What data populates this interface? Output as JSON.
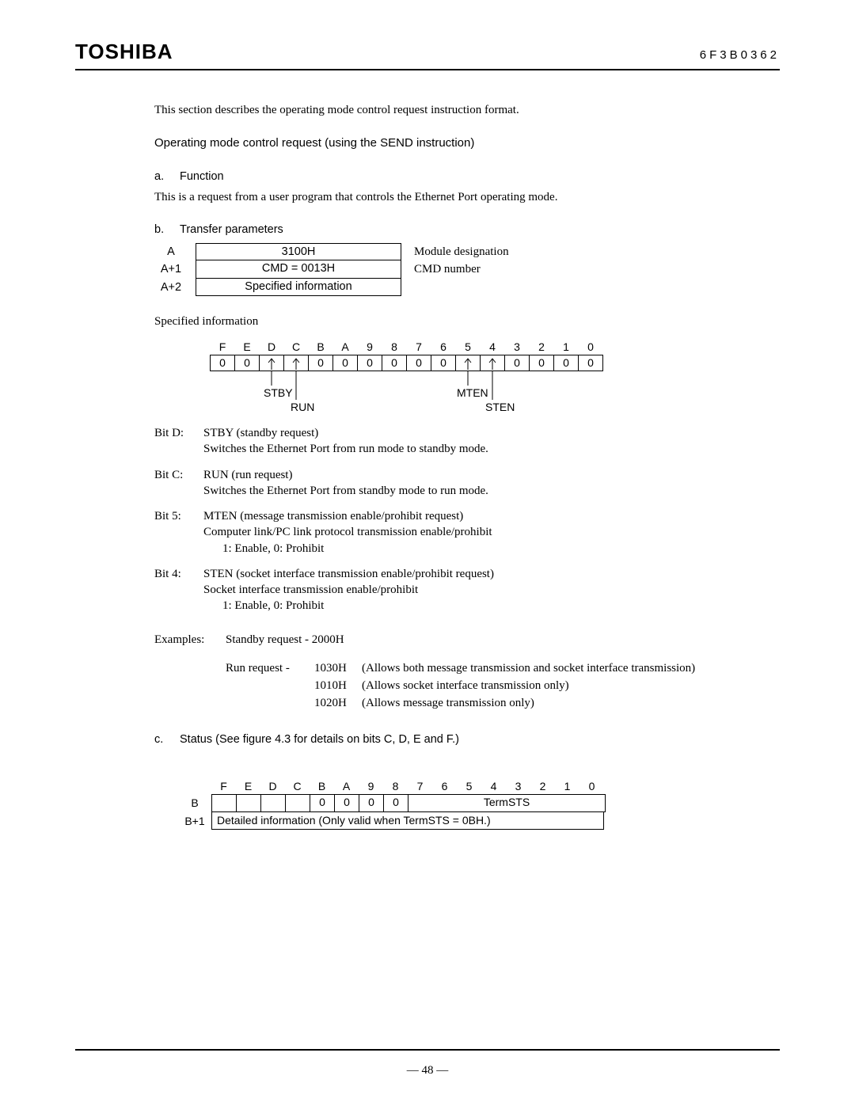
{
  "header": {
    "logo": "TOSHIBA",
    "doc_id": "6F3B0362"
  },
  "intro": "This section describes the operating mode control request instruction format.",
  "section_title": "Operating mode control request (using the SEND instruction)",
  "a": {
    "letter": "a.",
    "heading": "Function",
    "body": "This is a request from a user program that controls the Ethernet Port operating mode."
  },
  "b": {
    "letter": "b.",
    "heading": "Transfer parameters",
    "rows": [
      {
        "addr": "A",
        "value": "3100H",
        "desc": "Module designation"
      },
      {
        "addr": "A+1",
        "value": "CMD = 0013H",
        "desc": "CMD number"
      },
      {
        "addr": "A+2",
        "value": "Specified information",
        "desc": ""
      }
    ]
  },
  "spec_info_label": "Specified information",
  "bit_header": [
    "F",
    "E",
    "D",
    "C",
    "B",
    "A",
    "9",
    "8",
    "7",
    "6",
    "5",
    "4",
    "3",
    "2",
    "1",
    "0"
  ],
  "bit_values": [
    "0",
    "0",
    "↑",
    "↑",
    "0",
    "0",
    "0",
    "0",
    "0",
    "0",
    "↑",
    "↑",
    "0",
    "0",
    "0",
    "0"
  ],
  "bit_arrow_indices": [
    2,
    3,
    10,
    11
  ],
  "bit_labels": {
    "stby": "STBY",
    "run": "RUN",
    "mten": "MTEN",
    "sten": "STEN"
  },
  "bit_descriptions": [
    {
      "label": "Bit D:",
      "title": "STBY (standby request)",
      "lines": [
        "Switches the Ethernet Port from run mode to standby mode."
      ]
    },
    {
      "label": "Bit C:",
      "title": "RUN (run request)",
      "lines": [
        "Switches the Ethernet Port from standby mode to run mode."
      ]
    },
    {
      "label": "Bit 5:",
      "title": "MTEN (message transmission enable/prohibit request)",
      "lines": [
        "Computer link/PC link protocol transmission enable/prohibit"
      ],
      "indent": "1: Enable, 0: Prohibit"
    },
    {
      "label": "Bit 4:",
      "title": "STEN (socket interface transmission enable/prohibit request)",
      "lines": [
        "Socket interface transmission enable/prohibit"
      ],
      "indent": "1: Enable, 0: Prohibit"
    }
  ],
  "examples": {
    "label": "Examples:",
    "standby": "Standby request - 2000H",
    "run_label": "Run request -",
    "items": [
      {
        "code": "1030H",
        "desc": "(Allows both message transmission and socket interface transmission)"
      },
      {
        "code": "1010H",
        "desc": "(Allows socket interface transmission only)"
      },
      {
        "code": "1020H",
        "desc": "(Allows message transmission only)"
      }
    ]
  },
  "c": {
    "letter": "c.",
    "heading": "Status (See figure 4.3 for details on bits C, D, E and F.)"
  },
  "status": {
    "header": [
      "F",
      "E",
      "D",
      "C",
      "B",
      "A",
      "9",
      "8",
      "7",
      "6",
      "5",
      "4",
      "3",
      "2",
      "1",
      "0"
    ],
    "row_b_label": "B",
    "row_b_cells_blank": [
      "",
      "",
      "",
      "",
      ""
    ],
    "row_b_zeros": [
      "0",
      "0",
      "0",
      "0"
    ],
    "row_b_termsts": "TermSTS",
    "row_b1_label": "B+1",
    "row_b1_text": "Detailed information (Only valid when TermSTS = 0BH.)"
  },
  "page_number": "— 48 —"
}
